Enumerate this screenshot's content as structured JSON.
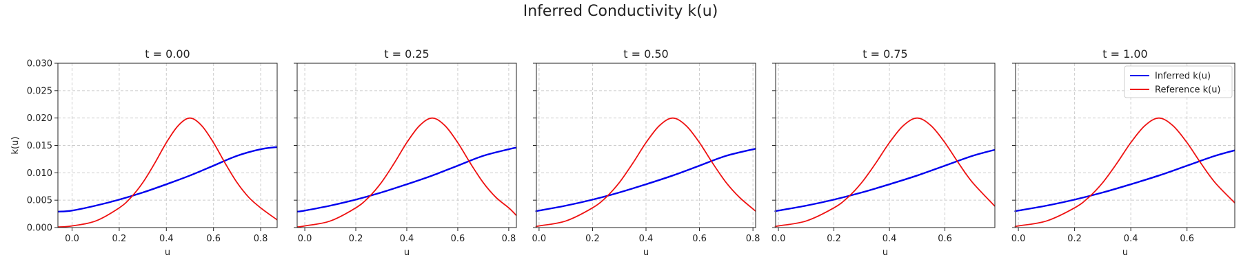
{
  "figure": {
    "suptitle": "Inferred Conductivity k(u)"
  },
  "colors": {
    "inferred": "#0000ee",
    "reference": "#ee1111",
    "grid": "#cccccc"
  },
  "chart_data": [
    {
      "type": "line",
      "title": "t = 0.00",
      "xlabel": "u",
      "ylabel": "k(u)",
      "xlim": [
        -0.06,
        0.87
      ],
      "ylim": [
        0,
        0.03
      ],
      "xticks": [
        "0.0",
        "0.2",
        "0.4",
        "0.6",
        "0.8"
      ],
      "yticks": [
        "0.000",
        "0.005",
        "0.010",
        "0.015",
        "0.020",
        "0.025",
        "0.030"
      ],
      "grid": true,
      "legend": null,
      "series": [
        {
          "name": "Inferred k(u)",
          "x": [
            -0.06,
            0.0,
            0.1,
            0.2,
            0.3,
            0.4,
            0.5,
            0.6,
            0.7,
            0.8,
            0.87
          ],
          "y": [
            0.0029,
            0.0031,
            0.004,
            0.0051,
            0.0064,
            0.0079,
            0.0095,
            0.0113,
            0.0131,
            0.0143,
            0.0147
          ]
        },
        {
          "name": "Reference k(u)",
          "x": [
            -0.06,
            0.0,
            0.1,
            0.2,
            0.25,
            0.3,
            0.35,
            0.4,
            0.45,
            0.5,
            0.55,
            0.6,
            0.65,
            0.7,
            0.75,
            0.8,
            0.87
          ],
          "y": [
            0.0001,
            0.0003,
            0.0012,
            0.0036,
            0.0055,
            0.0082,
            0.0117,
            0.0155,
            0.0186,
            0.02,
            0.0186,
            0.0155,
            0.0117,
            0.0082,
            0.0055,
            0.0036,
            0.0014
          ]
        }
      ]
    },
    {
      "type": "line",
      "title": "t = 0.25",
      "xlabel": "u",
      "ylabel": "",
      "xlim": [
        -0.03,
        0.83
      ],
      "ylim": [
        0,
        0.03
      ],
      "xticks": [
        "0.0",
        "0.2",
        "0.4",
        "0.6",
        "0.8"
      ],
      "yticks": [],
      "grid": true,
      "legend": null,
      "series": [
        {
          "name": "Inferred k(u)",
          "x": [
            -0.03,
            0.0,
            0.1,
            0.2,
            0.3,
            0.4,
            0.5,
            0.6,
            0.7,
            0.8,
            0.83
          ],
          "y": [
            0.0029,
            0.0031,
            0.004,
            0.0051,
            0.0064,
            0.0079,
            0.0095,
            0.0113,
            0.0131,
            0.0143,
            0.0146
          ]
        },
        {
          "name": "Reference k(u)",
          "x": [
            -0.03,
            0.0,
            0.1,
            0.2,
            0.25,
            0.3,
            0.35,
            0.4,
            0.45,
            0.5,
            0.55,
            0.6,
            0.65,
            0.7,
            0.75,
            0.8,
            0.83
          ],
          "y": [
            0.0001,
            0.0003,
            0.0012,
            0.0036,
            0.0055,
            0.0082,
            0.0117,
            0.0155,
            0.0186,
            0.02,
            0.0186,
            0.0155,
            0.0117,
            0.0082,
            0.0055,
            0.0036,
            0.0022
          ]
        }
      ]
    },
    {
      "type": "line",
      "title": "t = 0.50",
      "xlabel": "u",
      "ylabel": "",
      "xlim": [
        -0.01,
        0.81
      ],
      "ylim": [
        0,
        0.03
      ],
      "xticks": [
        "0.0",
        "0.2",
        "0.4",
        "0.6",
        "0.8"
      ],
      "yticks": [],
      "grid": true,
      "legend": null,
      "series": [
        {
          "name": "Inferred k(u)",
          "x": [
            -0.01,
            0.0,
            0.1,
            0.2,
            0.3,
            0.4,
            0.5,
            0.6,
            0.7,
            0.81
          ],
          "y": [
            0.003,
            0.0031,
            0.004,
            0.0051,
            0.0064,
            0.0079,
            0.0095,
            0.0113,
            0.0131,
            0.0144
          ]
        },
        {
          "name": "Reference k(u)",
          "x": [
            -0.01,
            0.0,
            0.1,
            0.2,
            0.25,
            0.3,
            0.35,
            0.4,
            0.45,
            0.5,
            0.55,
            0.6,
            0.65,
            0.7,
            0.75,
            0.81
          ],
          "y": [
            0.0002,
            0.0003,
            0.0012,
            0.0036,
            0.0055,
            0.0082,
            0.0117,
            0.0155,
            0.0186,
            0.02,
            0.0186,
            0.0155,
            0.0117,
            0.0082,
            0.0055,
            0.003
          ]
        }
      ]
    },
    {
      "type": "line",
      "title": "t = 0.75",
      "xlabel": "u",
      "ylabel": "",
      "xlim": [
        -0.01,
        0.78
      ],
      "ylim": [
        0,
        0.03
      ],
      "xticks": [
        "0.0",
        "0.2",
        "0.4",
        "0.6"
      ],
      "yticks": [],
      "grid": true,
      "legend": null,
      "series": [
        {
          "name": "Inferred k(u)",
          "x": [
            -0.01,
            0.0,
            0.1,
            0.2,
            0.3,
            0.4,
            0.5,
            0.6,
            0.7,
            0.78
          ],
          "y": [
            0.003,
            0.0031,
            0.004,
            0.0051,
            0.0064,
            0.0079,
            0.0095,
            0.0113,
            0.0131,
            0.0142
          ]
        },
        {
          "name": "Reference k(u)",
          "x": [
            -0.01,
            0.0,
            0.1,
            0.2,
            0.25,
            0.3,
            0.35,
            0.4,
            0.45,
            0.5,
            0.55,
            0.6,
            0.65,
            0.7,
            0.78
          ],
          "y": [
            0.0002,
            0.0003,
            0.0012,
            0.0036,
            0.0055,
            0.0082,
            0.0117,
            0.0155,
            0.0186,
            0.02,
            0.0186,
            0.0155,
            0.0117,
            0.0082,
            0.0039
          ]
        }
      ]
    },
    {
      "type": "line",
      "title": "t = 1.00",
      "xlabel": "u",
      "ylabel": "",
      "xlim": [
        -0.01,
        0.77
      ],
      "ylim": [
        0,
        0.03
      ],
      "xticks": [
        "0.0",
        "0.2",
        "0.4",
        "0.6"
      ],
      "yticks": [],
      "grid": true,
      "legend": "top-right",
      "series": [
        {
          "name": "Inferred k(u)",
          "x": [
            -0.01,
            0.0,
            0.1,
            0.2,
            0.3,
            0.4,
            0.5,
            0.6,
            0.7,
            0.77
          ],
          "y": [
            0.003,
            0.0031,
            0.004,
            0.0051,
            0.0064,
            0.0079,
            0.0095,
            0.0113,
            0.0131,
            0.0141
          ]
        },
        {
          "name": "Reference k(u)",
          "x": [
            -0.01,
            0.0,
            0.1,
            0.2,
            0.25,
            0.3,
            0.35,
            0.4,
            0.45,
            0.5,
            0.55,
            0.6,
            0.65,
            0.7,
            0.77
          ],
          "y": [
            0.0002,
            0.0003,
            0.0012,
            0.0036,
            0.0055,
            0.0082,
            0.0117,
            0.0155,
            0.0186,
            0.02,
            0.0186,
            0.0155,
            0.0117,
            0.0082,
            0.0045
          ]
        }
      ]
    }
  ]
}
